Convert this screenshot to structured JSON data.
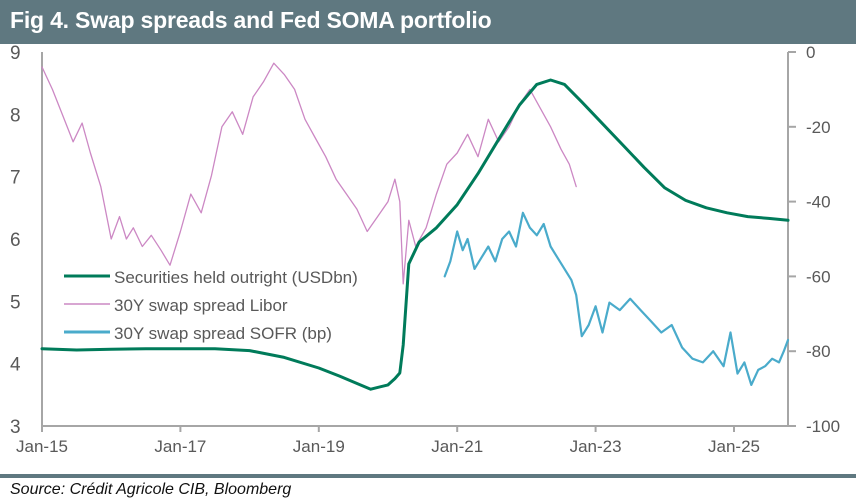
{
  "header": {
    "title": "Fig 4. Swap spreads and Fed SOMA portfolio"
  },
  "footer": {
    "source": "Source: Crédit Agricole CIB, Bloomberg"
  },
  "colors": {
    "header_bg": "#5f7880",
    "soma": "#007b5a",
    "libor": "#cc88c4",
    "sofr": "#4aabcb",
    "axis": "#a6a6a6",
    "tick_text": "#595959"
  },
  "chart_data": {
    "type": "line",
    "title": "Fig 4. Swap spreads and Fed SOMA portfolio",
    "xlabel": "",
    "ylabel_left": "",
    "ylabel_right": "",
    "x_ticks": [
      "Jan-15",
      "Jan-17",
      "Jan-19",
      "Jan-21",
      "Jan-23",
      "Jan-25"
    ],
    "x_tick_years": [
      2015,
      2017,
      2019,
      2021,
      2023,
      2025
    ],
    "x_range": [
      2015.0,
      2025.78
    ],
    "y_left": {
      "ticks": [
        "3",
        "4",
        "5",
        "6",
        "7",
        "8",
        "9"
      ],
      "range": [
        3,
        9
      ]
    },
    "y_right": {
      "ticks": [
        "0",
        "-20",
        "-40",
        "-60",
        "-80",
        "-100"
      ],
      "range": [
        -100,
        0
      ]
    },
    "grid": false,
    "legend": {
      "placement": "center-left",
      "entries": [
        "Securities held outright (USDbn)",
        "30Y swap spread Libor",
        "30Y swap spread SOFR (bp)"
      ]
    },
    "series": [
      {
        "name": "Securities held outright (USDbn)",
        "axis": "left",
        "x": [
          2015.0,
          2015.5,
          2016.0,
          2016.5,
          2017.0,
          2017.5,
          2018.0,
          2018.5,
          2019.0,
          2019.3,
          2019.6,
          2019.75,
          2020.0,
          2020.1,
          2020.17,
          2020.22,
          2020.3,
          2020.45,
          2020.7,
          2021.0,
          2021.3,
          2021.6,
          2021.9,
          2022.15,
          2022.35,
          2022.55,
          2022.8,
          2023.1,
          2023.4,
          2023.7,
          2024.0,
          2024.3,
          2024.6,
          2024.9,
          2025.2,
          2025.5,
          2025.78
        ],
        "values": [
          4.24,
          4.22,
          4.23,
          4.24,
          4.24,
          4.24,
          4.21,
          4.1,
          3.93,
          3.8,
          3.66,
          3.59,
          3.66,
          3.76,
          3.85,
          4.3,
          5.6,
          5.95,
          6.18,
          6.55,
          7.05,
          7.6,
          8.15,
          8.48,
          8.55,
          8.48,
          8.2,
          7.85,
          7.5,
          7.15,
          6.82,
          6.62,
          6.5,
          6.42,
          6.36,
          6.33,
          6.3
        ]
      },
      {
        "name": "30Y swap spread Libor",
        "axis": "right",
        "x": [
          2015.0,
          2015.15,
          2015.3,
          2015.45,
          2015.58,
          2015.7,
          2015.85,
          2016.0,
          2016.12,
          2016.22,
          2016.32,
          2016.45,
          2016.58,
          2016.72,
          2016.85,
          2017.0,
          2017.15,
          2017.3,
          2017.45,
          2017.6,
          2017.75,
          2017.9,
          2018.05,
          2018.2,
          2018.35,
          2018.5,
          2018.65,
          2018.8,
          2018.95,
          2019.1,
          2019.25,
          2019.4,
          2019.55,
          2019.7,
          2019.85,
          2020.0,
          2020.1,
          2020.17,
          2020.22,
          2020.3,
          2020.4,
          2020.55,
          2020.7,
          2020.85,
          2021.0,
          2021.15,
          2021.3,
          2021.45,
          2021.6,
          2021.75,
          2021.9,
          2022.05,
          2022.2,
          2022.35,
          2022.5,
          2022.62,
          2022.72
        ],
        "values": [
          -4,
          -10,
          -17,
          -24,
          -19,
          -27,
          -36,
          -50,
          -44,
          -50,
          -47,
          -52,
          -49,
          -53,
          -57,
          -48,
          -38,
          -43,
          -33,
          -20,
          -16,
          -22,
          -12,
          -8,
          -3,
          -6,
          -10,
          -18,
          -23,
          -28,
          -34,
          -38,
          -42,
          -48,
          -44,
          -40,
          -34,
          -40,
          -62,
          -45,
          -52,
          -47,
          -38,
          -30,
          -27,
          -22,
          -28,
          -18,
          -24,
          -20,
          -14,
          -10,
          -15,
          -20,
          -26,
          -30,
          -36
        ]
      },
      {
        "name": "30Y swap spread SOFR (bp)",
        "axis": "right",
        "x": [
          2020.82,
          2020.9,
          2021.0,
          2021.08,
          2021.15,
          2021.25,
          2021.35,
          2021.45,
          2021.55,
          2021.65,
          2021.75,
          2021.85,
          2021.95,
          2022.05,
          2022.15,
          2022.25,
          2022.35,
          2022.45,
          2022.55,
          2022.65,
          2022.72,
          2022.8,
          2022.9,
          2023.0,
          2023.1,
          2023.2,
          2023.35,
          2023.5,
          2023.65,
          2023.8,
          2023.95,
          2024.1,
          2024.25,
          2024.4,
          2024.55,
          2024.7,
          2024.85,
          2024.95,
          2025.05,
          2025.15,
          2025.25,
          2025.35,
          2025.45,
          2025.55,
          2025.65,
          2025.72,
          2025.78
        ],
        "values": [
          -60,
          -56,
          -48,
          -53,
          -50,
          -58,
          -55,
          -52,
          -56,
          -50,
          -48,
          -52,
          -43,
          -47,
          -49,
          -46,
          -52,
          -55,
          -58,
          -61,
          -65,
          -76,
          -73,
          -68,
          -75,
          -67,
          -69,
          -66,
          -69,
          -72,
          -75,
          -73,
          -79,
          -82,
          -83,
          -80,
          -84,
          -75,
          -86,
          -83,
          -89,
          -85,
          -84,
          -82,
          -83,
          -80,
          -77
        ]
      }
    ]
  }
}
